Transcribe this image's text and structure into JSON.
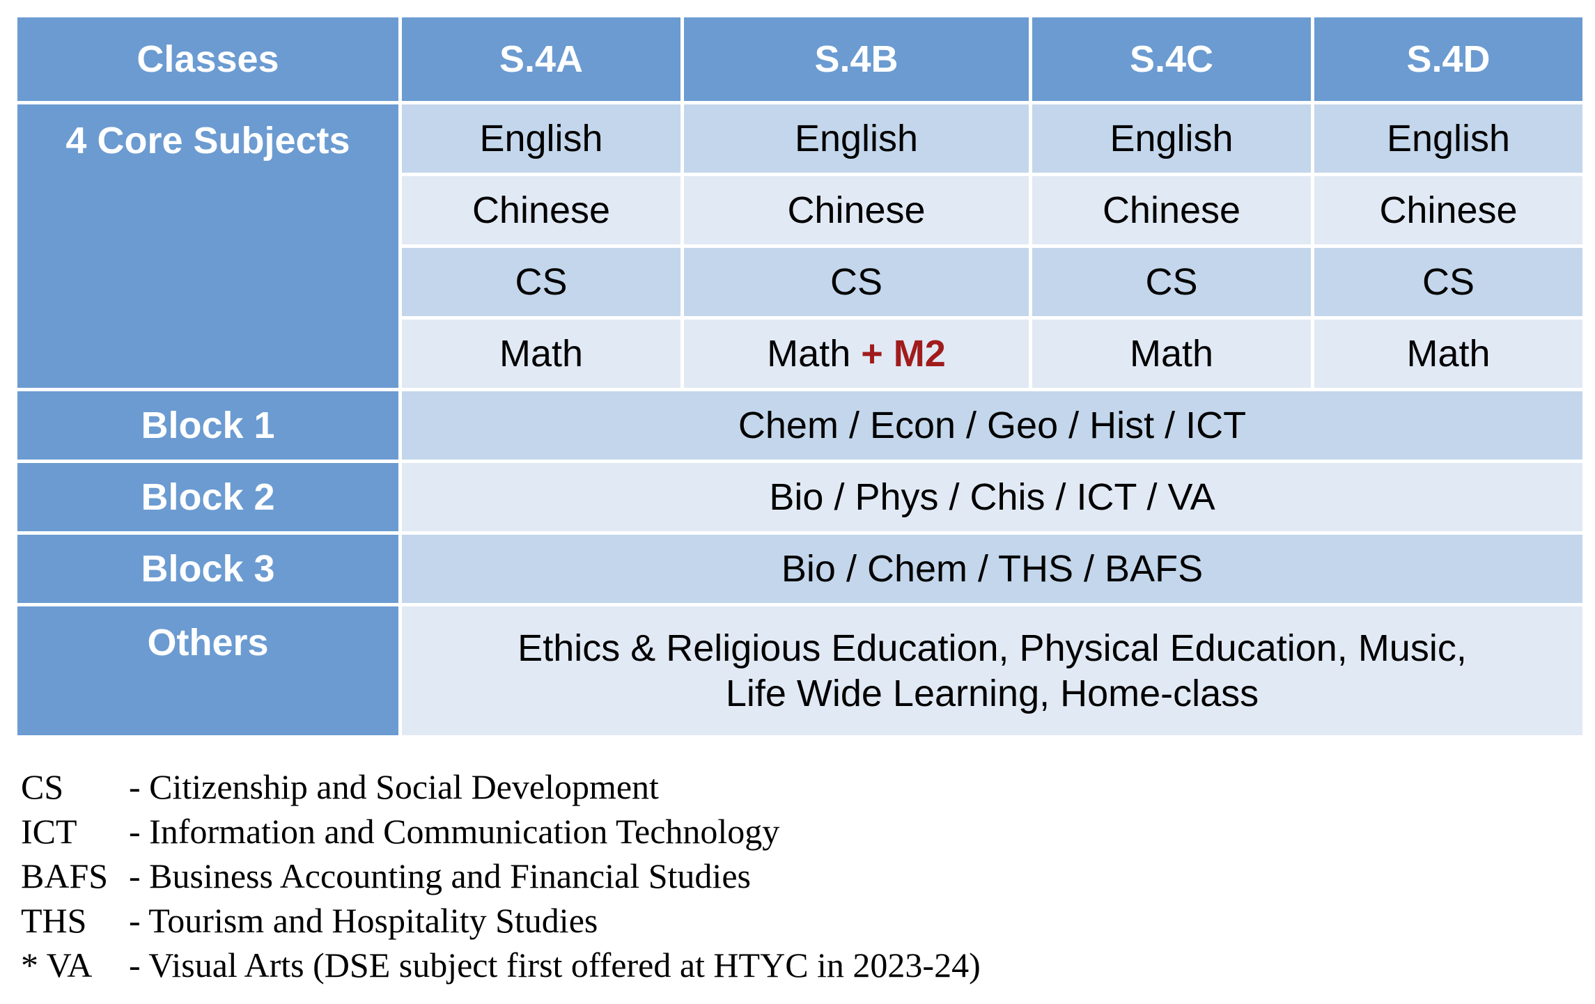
{
  "header": {
    "row_label": "Classes",
    "classes": [
      "S.4A",
      "S.4B",
      "S.4C",
      "S.4D"
    ]
  },
  "core": {
    "label": "4 Core Subjects",
    "rows": [
      [
        "English",
        "English",
        "English",
        "English"
      ],
      [
        "Chinese",
        "Chinese",
        "Chinese",
        "Chinese"
      ],
      [
        "CS",
        "CS",
        "CS",
        "CS"
      ],
      [
        "Math",
        "Math",
        "Math",
        "Math"
      ]
    ],
    "m2_suffix": "+ M2"
  },
  "blocks": [
    {
      "label": "Block 1",
      "subjects": "Chem / Econ / Geo / Hist / ICT"
    },
    {
      "label": "Block 2",
      "subjects": "Bio / Phys / Chis / ICT / VA"
    },
    {
      "label": "Block 3",
      "subjects": "Bio / Chem / THS / BAFS"
    }
  ],
  "others": {
    "label": "Others",
    "line1": "Ethics & Religious Education, Physical Education, Music,",
    "line2": "Life Wide Learning, Home-class"
  },
  "legend": [
    {
      "abbr": "CS",
      "definition": "- Citizenship and Social Development"
    },
    {
      "abbr": "ICT",
      "definition": "- Information and Communication Technology"
    },
    {
      "abbr": "BAFS",
      "definition": "- Business Accounting and Financial Studies"
    },
    {
      "abbr": "THS",
      "definition": "- Tourism and Hospitality Studies"
    },
    {
      "abbr": "* VA",
      "definition": "- Visual Arts (DSE subject first offered at HTYC in 2023-24)"
    }
  ],
  "colors": {
    "header_blue": "#6b9bd1",
    "band_dark": "#c3d6eb",
    "band_light": "#e1e9f4",
    "m2_red": "#a01c1c"
  }
}
